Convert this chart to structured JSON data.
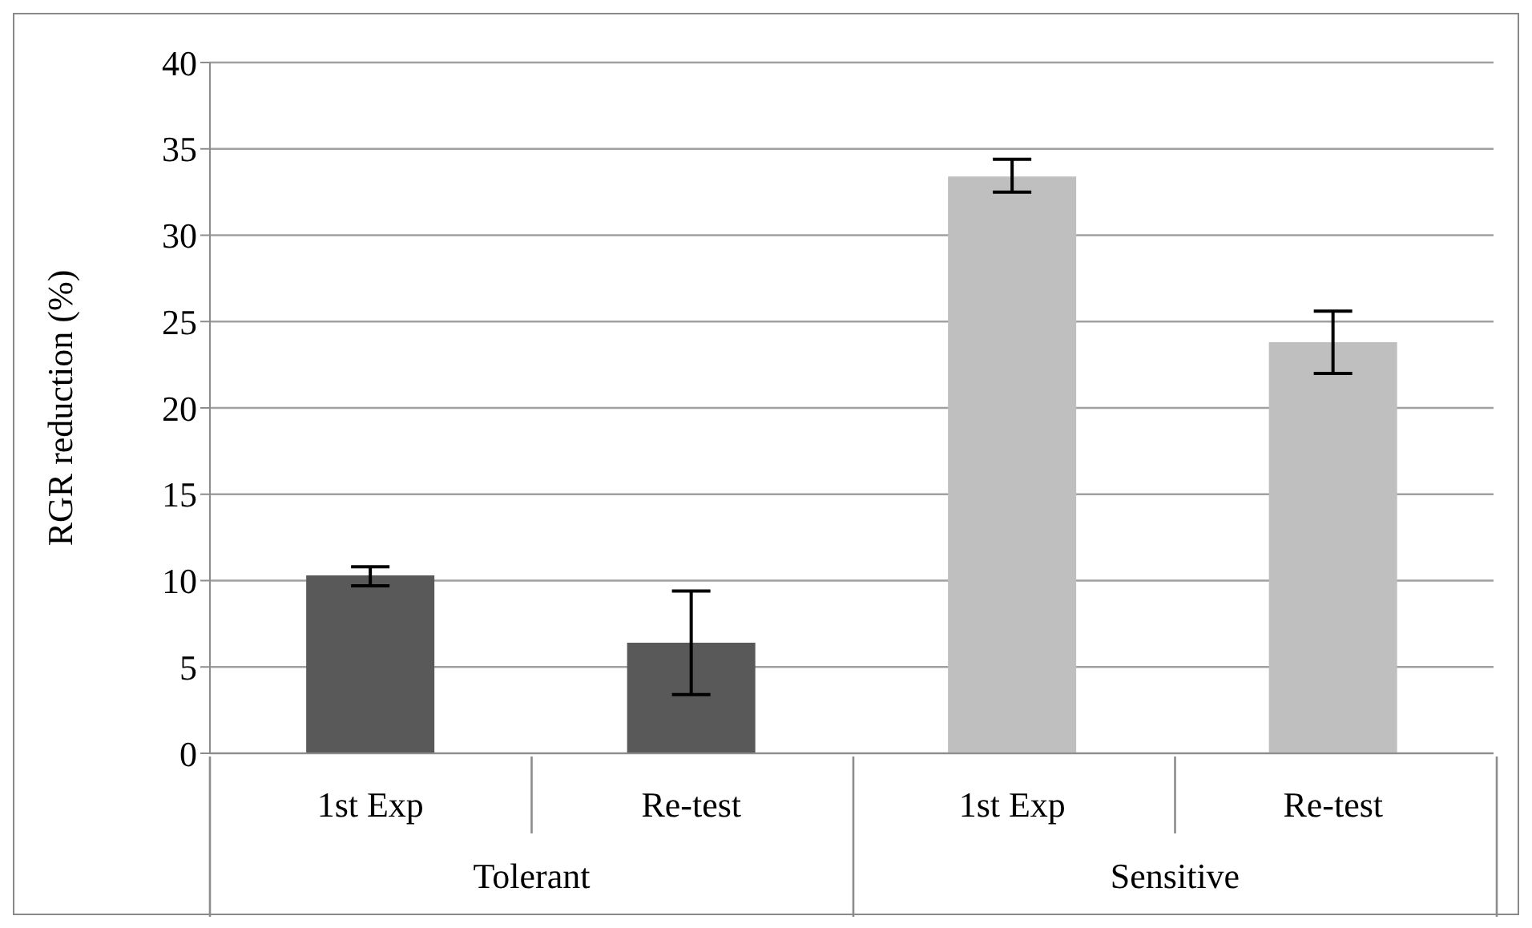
{
  "chart_data": {
    "type": "bar",
    "ylabel": "RGR reduction (%)",
    "categories": [
      "1st Exp",
      "Re-test",
      "1st Exp",
      "Re-test"
    ],
    "values": [
      10.3,
      6.4,
      33.4,
      23.8
    ],
    "colors": [
      "#595959",
      "#595959",
      "#bfbfbf",
      "#bfbfbf"
    ],
    "errors": [
      [
        9.7,
        10.8
      ],
      [
        3.4,
        9.4
      ],
      [
        32.5,
        34.4
      ],
      [
        22.0,
        25.6
      ]
    ],
    "annotations": [
      "Tolerant",
      "Sensitive"
    ],
    "ylim": [
      0,
      40
    ],
    "yticks": [
      0,
      5,
      10,
      15,
      20,
      25,
      30,
      35,
      40
    ],
    "grid": "y",
    "legend": false
  }
}
